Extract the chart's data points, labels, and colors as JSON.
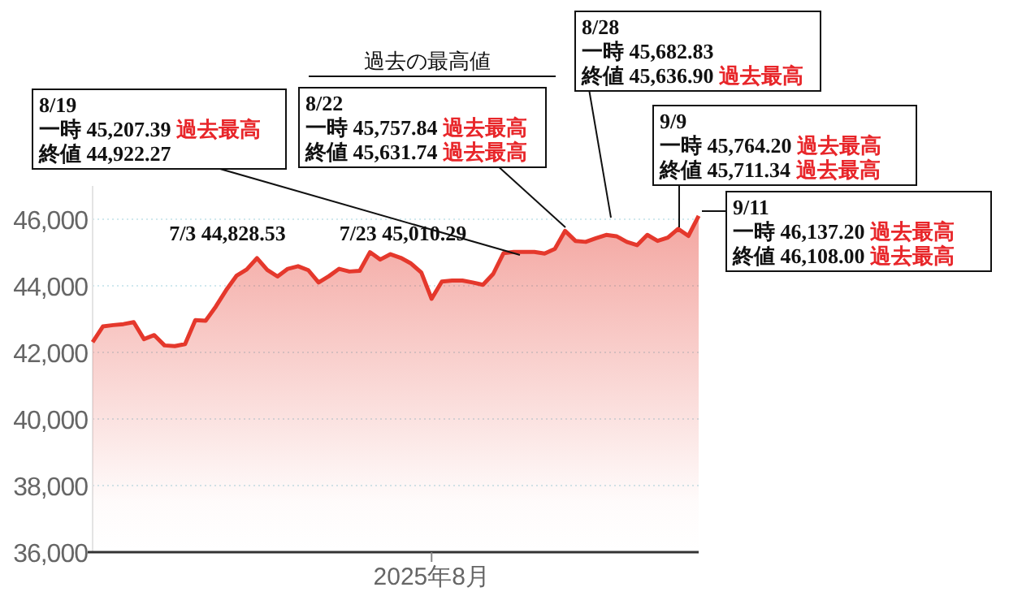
{
  "chart_data": {
    "type": "area",
    "color": "#e5382c",
    "categories": [
      null,
      null,
      null,
      null,
      null,
      null,
      null,
      null,
      null,
      null,
      null,
      null,
      null,
      null,
      null,
      null,
      null,
      null,
      null,
      null,
      null,
      null,
      null,
      null,
      null,
      null,
      null,
      null,
      null,
      null,
      null,
      null,
      null,
      "2025年8月",
      null,
      null,
      null,
      null,
      null,
      null,
      null,
      null,
      null,
      null,
      null,
      null,
      null,
      null,
      null,
      null,
      null,
      null,
      null,
      null,
      null,
      null,
      null,
      null,
      null,
      null
    ],
    "values": [
      42310,
      42780,
      42820,
      42850,
      42910,
      42400,
      42520,
      42210,
      42190,
      42250,
      42970,
      42950,
      43380,
      43870,
      44300,
      44490,
      44830,
      44480,
      44280,
      44510,
      44590,
      44470,
      44100,
      44290,
      44510,
      44430,
      44450,
      45010,
      44790,
      44950,
      44840,
      44670,
      44400,
      43610,
      44130,
      44160,
      44160,
      44100,
      44030,
      44360,
      44980,
      45020,
      45020,
      45020,
      44970,
      45110,
      45650,
      45350,
      45320,
      45430,
      45530,
      45490,
      45320,
      45220,
      45530,
      45350,
      45450,
      45710,
      45500,
      46100
    ],
    "ylim": [
      36000,
      47000
    ],
    "yticks": [
      {
        "value": 36000,
        "label": "36,000"
      },
      {
        "value": 38000,
        "label": "38,000"
      },
      {
        "value": 40000,
        "label": "40,000"
      },
      {
        "value": 42000,
        "label": "42,000"
      },
      {
        "value": 44000,
        "label": "44,000"
      },
      {
        "value": 46000,
        "label": "46,000"
      }
    ],
    "grid": "y",
    "annotations": [
      "過去の最高値",
      "8/19",
      "一時 45,207.39 過去最高",
      "終値 44,922.27",
      "8/22",
      "一時 45,757.84 過去最高",
      "終値 45,631.74 過去最高",
      "8/28",
      "一時 45,682.83",
      "終値 45,636.90 過去最高",
      "9/9",
      "一時 45,764.20 過去最高",
      "終値 45,711.34 過去最高",
      "9/11",
      "一時 46,137.20 過去最高",
      "終値 46,108.00 過去最高",
      "7/3 44,828.53",
      "7/23 45,010.29"
    ]
  }
}
